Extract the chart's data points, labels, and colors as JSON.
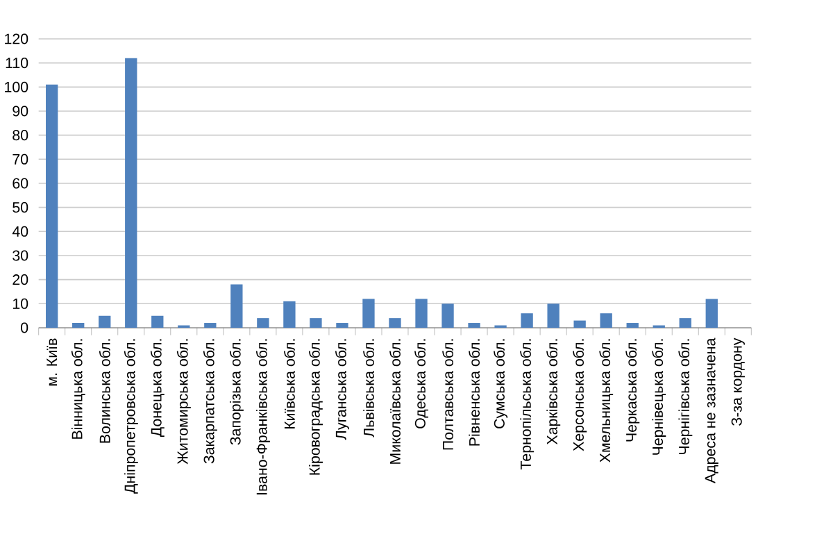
{
  "chart_data": {
    "type": "bar",
    "categories": [
      "м. Київ",
      "Вінницька обл.",
      "Волинська обл.",
      "Дніпропетровська обл.",
      "Донецька обл.",
      "Житомирська обл.",
      "Закарпатська обл.",
      "Запорізька обл.",
      "Івано-Франківська обл.",
      "Київська обл.",
      "Кіровоградська обл.",
      "Луганська обл.",
      "Львівська обл.",
      "Миколаївська обл.",
      "Одеська обл.",
      "Полтавська обл.",
      "Рівненська обл.",
      "Сумська обл.",
      "Тернопільська обл.",
      "Харківська обл.",
      "Херсонська обл.",
      "Хмельницька обл.",
      "Черкаська обл.",
      "Чернівецька обл.",
      "Чернігівська обл.",
      "Адреса не зазначена",
      "З-за кордону"
    ],
    "values": [
      101,
      2,
      5,
      112,
      5,
      1,
      2,
      18,
      4,
      11,
      4,
      2,
      12,
      4,
      12,
      10,
      2,
      1,
      6,
      10,
      3,
      6,
      2,
      1,
      4,
      12,
      0
    ],
    "color": "#4f81bd",
    "ylim": [
      0,
      120
    ],
    "yticks": [
      0,
      10,
      20,
      30,
      40,
      50,
      60,
      70,
      80,
      90,
      100,
      110,
      120
    ],
    "grid": "y",
    "legend": false
  }
}
